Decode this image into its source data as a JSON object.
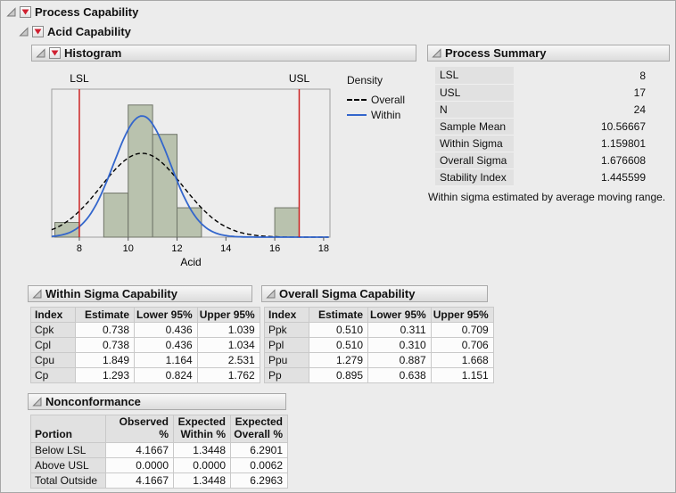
{
  "outline": {
    "root": {
      "label": "Process Capability"
    },
    "acid": {
      "label": "Acid Capability"
    },
    "histogram": {
      "label": "Histogram"
    },
    "process_summary": {
      "label": "Process Summary"
    },
    "within": {
      "label": "Within Sigma Capability"
    },
    "overall": {
      "label": "Overall Sigma Capability"
    },
    "nonconformance": {
      "label": "Nonconformance"
    }
  },
  "process_summary": {
    "rows": [
      {
        "label": "LSL",
        "value": "8"
      },
      {
        "label": "USL",
        "value": "17"
      },
      {
        "label": "N",
        "value": "24"
      },
      {
        "label": "Sample Mean",
        "value": "10.56667"
      },
      {
        "label": "Within Sigma",
        "value": "1.159801"
      },
      {
        "label": "Overall Sigma",
        "value": "1.676608"
      },
      {
        "label": "Stability Index",
        "value": "1.445599"
      }
    ],
    "note": "Within sigma estimated by average moving range."
  },
  "within_capability": {
    "headers": [
      "Index",
      "Estimate",
      "Lower 95%",
      "Upper 95%"
    ],
    "rows": [
      {
        "index": "Cpk",
        "estimate": "0.738",
        "lower": "0.436",
        "upper": "1.039"
      },
      {
        "index": "Cpl",
        "estimate": "0.738",
        "lower": "0.436",
        "upper": "1.034"
      },
      {
        "index": "Cpu",
        "estimate": "1.849",
        "lower": "1.164",
        "upper": "2.531"
      },
      {
        "index": "Cp",
        "estimate": "1.293",
        "lower": "0.824",
        "upper": "1.762"
      }
    ]
  },
  "overall_capability": {
    "headers": [
      "Index",
      "Estimate",
      "Lower 95%",
      "Upper 95%"
    ],
    "rows": [
      {
        "index": "Ppk",
        "estimate": "0.510",
        "lower": "0.311",
        "upper": "0.709"
      },
      {
        "index": "Ppl",
        "estimate": "0.510",
        "lower": "0.310",
        "upper": "0.706"
      },
      {
        "index": "Ppu",
        "estimate": "1.279",
        "lower": "0.887",
        "upper": "1.668"
      },
      {
        "index": "Pp",
        "estimate": "0.895",
        "lower": "0.638",
        "upper": "1.151"
      }
    ]
  },
  "nonconformance": {
    "headers": [
      "Portion",
      "Observed %",
      "Expected\nWithin %",
      "Expected\nOverall %"
    ],
    "rows": [
      {
        "portion": "Below LSL",
        "observed": "4.1667",
        "expected_within": "1.3448",
        "expected_overall": "6.2901"
      },
      {
        "portion": "Above USL",
        "observed": "0.0000",
        "expected_within": "0.0000",
        "expected_overall": "0.0062"
      },
      {
        "portion": "Total Outside",
        "observed": "4.1667",
        "expected_within": "1.3448",
        "expected_overall": "6.2963"
      }
    ]
  },
  "chart_data": {
    "type": "histogram",
    "title": "",
    "xlabel": "Acid",
    "x_domain": [
      6.87,
      18.26
    ],
    "x_ticks": [
      8,
      10,
      12,
      14,
      16,
      18
    ],
    "y_max_density": 0.42,
    "n": 24,
    "bins": [
      {
        "x0": 7,
        "x1": 8,
        "count": 1
      },
      {
        "x0": 9,
        "x1": 10,
        "count": 3
      },
      {
        "x0": 10,
        "x1": 11,
        "count": 9
      },
      {
        "x0": 11,
        "x1": 12,
        "count": 7
      },
      {
        "x0": 12,
        "x1": 13,
        "count": 2
      },
      {
        "x0": 16,
        "x1": 17,
        "count": 2
      }
    ],
    "ref_lines": [
      {
        "label": "LSL",
        "x": 8,
        "color": "#cc2222"
      },
      {
        "label": "USL",
        "x": 17,
        "color": "#cc2222"
      }
    ],
    "curves": [
      {
        "name": "Overall",
        "mean": 10.56667,
        "sigma": 1.676608,
        "style": "dashed",
        "color": "#000000"
      },
      {
        "name": "Within",
        "mean": 10.56667,
        "sigma": 1.159801,
        "style": "solid",
        "color": "#3366cc"
      }
    ],
    "legend_title": "Density",
    "bar_fill": "#b9c2ae",
    "bar_stroke": "#6f7468"
  }
}
